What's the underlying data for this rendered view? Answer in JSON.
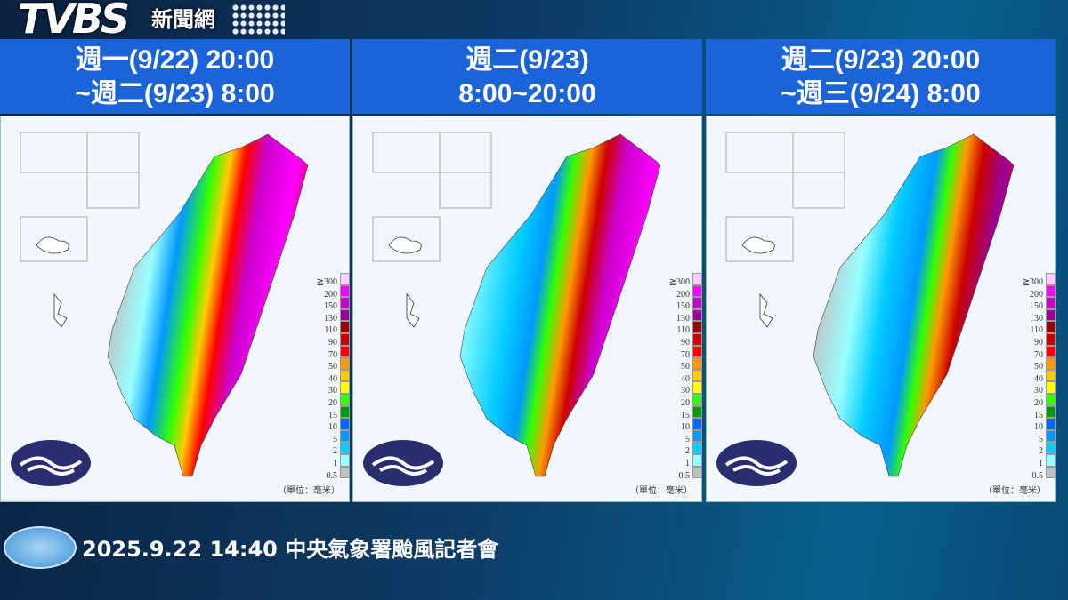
{
  "logo": {
    "brand": "TVBS",
    "sub": "新聞網"
  },
  "panels": [
    {
      "title_line1": "週一(9/22) 20:00",
      "title_line2": "~週二(9/23) 8:00"
    },
    {
      "title_line1": "週二(9/23)",
      "title_line2": "8:00~20:00"
    },
    {
      "title_line1": "週二(9/23) 20:00",
      "title_line2": "~週三(9/24) 8:00"
    }
  ],
  "legend": {
    "labels": [
      "≧300",
      "200",
      "150",
      "130",
      "110",
      "90",
      "70",
      "50",
      "40",
      "30",
      "20",
      "15",
      "10",
      "5",
      "2",
      "1",
      "0.5"
    ],
    "colors": [
      "#ffccff",
      "#ff00ff",
      "#cc00cc",
      "#990099",
      "#990000",
      "#cc0000",
      "#ff0000",
      "#ff9900",
      "#ffcc00",
      "#ffff00",
      "#33ff00",
      "#009900",
      "#0066ff",
      "#0099ff",
      "#00ccff",
      "#99ffff",
      "#c0c0c0"
    ],
    "unit": "（單位：毫米）"
  },
  "footer": {
    "text": "2025.9.22  14:40  中央氣象署颱風記者會"
  }
}
